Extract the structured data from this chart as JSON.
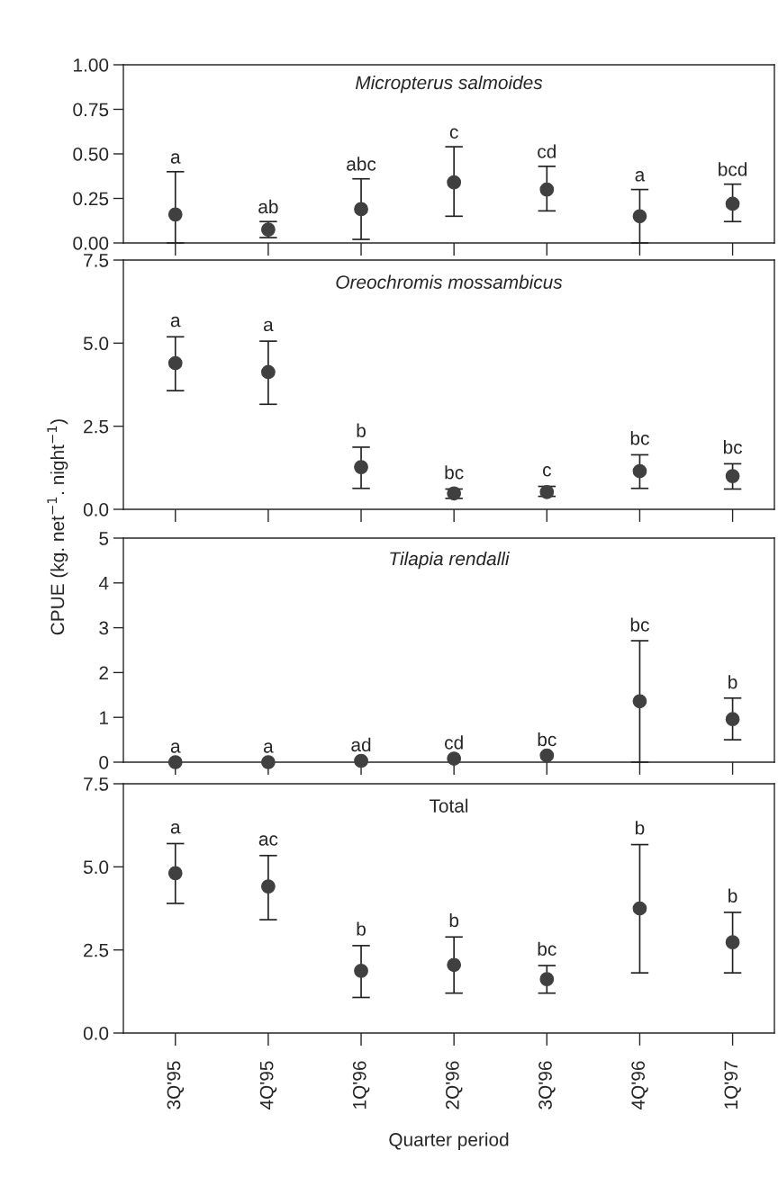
{
  "chart_data": [
    {
      "type": "scatter",
      "title": "Micropterus salmoides",
      "categories": [
        "3Q'95",
        "4Q'95",
        "1Q'96",
        "2Q'96",
        "3Q'96",
        "4Q'96",
        "1Q'97"
      ],
      "series": [
        {
          "color": "#404040",
          "values": [
            0.16,
            0.075,
            0.19,
            0.34,
            0.3,
            0.15,
            0.22
          ],
          "errors": [
            [
              0,
              0.4
            ],
            [
              0.03,
              0.12
            ],
            [
              0.02,
              0.36
            ],
            [
              0.15,
              0.54
            ],
            [
              0.18,
              0.43
            ],
            [
              0,
              0.3
            ],
            [
              0.12,
              0.33
            ]
          ]
        }
      ],
      "ylim": [
        0,
        1.0
      ],
      "yticks": [
        {
          "value": 0,
          "label": "0.00"
        },
        {
          "value": 0.25,
          "label": "0.25"
        },
        {
          "value": 0.5,
          "label": "0.50"
        },
        {
          "value": 0.75,
          "label": "0.75"
        },
        {
          "value": 1.0,
          "label": "1.00"
        }
      ],
      "marker": "circle",
      "grid": false,
      "legend": false,
      "tick_labels": "y",
      "annotations": [
        {
          "text": "a",
          "x": "3Q'95",
          "y": 0.4
        },
        {
          "text": "ab",
          "x": "4Q'95",
          "y": 0.12
        },
        {
          "text": "abc",
          "x": "1Q'96",
          "y": 0.36
        },
        {
          "text": "c",
          "x": "2Q'96",
          "y": 0.54
        },
        {
          "text": "cd",
          "x": "3Q'96",
          "y": 0.43
        },
        {
          "text": "a",
          "x": "4Q'96",
          "y": 0.3
        },
        {
          "text": "bcd",
          "x": "1Q'97",
          "y": 0.33
        }
      ]
    },
    {
      "type": "scatter",
      "title": "Oreochromis mossambicus",
      "categories": [
        "3Q'95",
        "4Q'95",
        "1Q'96",
        "2Q'96",
        "3Q'96",
        "4Q'96",
        "1Q'97"
      ],
      "series": [
        {
          "color": "#404040",
          "values": [
            4.4,
            4.13,
            1.27,
            0.48,
            0.52,
            1.15,
            1.0
          ],
          "errors": [
            [
              3.57,
              5.19
            ],
            [
              3.16,
              5.06
            ],
            [
              0.63,
              1.87
            ],
            [
              0.33,
              0.61
            ],
            [
              0.39,
              0.69
            ],
            [
              0.63,
              1.64
            ],
            [
              0.61,
              1.37
            ]
          ]
        }
      ],
      "ylim": [
        0,
        7.5
      ],
      "yticks": [
        {
          "value": 0,
          "label": "0.0"
        },
        {
          "value": 2.5,
          "label": "2.5"
        },
        {
          "value": 5,
          "label": "5.0"
        },
        {
          "value": 7.5,
          "label": "7.5"
        }
      ],
      "marker": "circle",
      "grid": false,
      "legend": false,
      "tick_labels": "y",
      "annotations": [
        {
          "text": "a",
          "x": "3Q'95",
          "y": 5.19
        },
        {
          "text": "a",
          "x": "4Q'95",
          "y": 5.06
        },
        {
          "text": "b",
          "x": "1Q'96",
          "y": 1.87
        },
        {
          "text": "bc",
          "x": "2Q'96",
          "y": 0.61
        },
        {
          "text": "c",
          "x": "3Q'96",
          "y": 0.69
        },
        {
          "text": "bc",
          "x": "4Q'96",
          "y": 1.64
        },
        {
          "text": "bc",
          "x": "1Q'97",
          "y": 1.37
        }
      ]
    },
    {
      "type": "scatter",
      "title": "Tilapia rendalli",
      "ylabel": "CPUE (kg. net$^{−1}$. night$^{−1}$)",
      "categories": [
        "3Q'95",
        "4Q'95",
        "1Q'96",
        "2Q'96",
        "3Q'96",
        "4Q'96",
        "1Q'97"
      ],
      "series": [
        {
          "color": "#404040",
          "values": [
            0,
            0,
            0.03,
            0.08,
            0.15,
            1.36,
            0.96
          ],
          "errors": [
            null,
            null,
            null,
            null,
            null,
            [
              0,
              2.71
            ],
            [
              0.5,
              1.43
            ]
          ]
        }
      ],
      "ylim": [
        0,
        5
      ],
      "yticks": [
        0,
        1,
        2,
        3,
        4,
        5
      ],
      "marker": "circle",
      "grid": false,
      "legend": false,
      "tick_labels": "y",
      "annotations": [
        {
          "text": "a",
          "x": "3Q'95",
          "y": 0
        },
        {
          "text": "a",
          "x": "4Q'95",
          "y": 0
        },
        {
          "text": "ad",
          "x": "1Q'96",
          "y": 0.03
        },
        {
          "text": "cd",
          "x": "2Q'96",
          "y": 0.08
        },
        {
          "text": "bc",
          "x": "3Q'96",
          "y": 0.15
        },
        {
          "text": "bc",
          "x": "4Q'96",
          "y": 2.71
        },
        {
          "text": "b",
          "x": "1Q'97",
          "y": 1.43
        }
      ]
    },
    {
      "type": "scatter",
      "title": "Total",
      "xlabel": "Quarter period",
      "categories": [
        "3Q'95",
        "4Q'95",
        "1Q'96",
        "2Q'96",
        "3Q'96",
        "4Q'96",
        "1Q'97"
      ],
      "series": [
        {
          "color": "#404040",
          "values": [
            4.81,
            4.41,
            1.87,
            2.05,
            1.62,
            3.75,
            2.73
          ],
          "errors": [
            [
              3.9,
              5.7
            ],
            [
              3.41,
              5.34
            ],
            [
              1.07,
              2.63
            ],
            [
              1.2,
              2.89
            ],
            [
              1.2,
              2.03
            ],
            [
              1.81,
              5.67
            ],
            [
              1.81,
              3.63
            ]
          ]
        }
      ],
      "ylim": [
        0,
        7.5
      ],
      "yticks": [
        {
          "value": 0,
          "label": "0.0"
        },
        {
          "value": 2.5,
          "label": "2.5"
        },
        {
          "value": 5,
          "label": "5.0"
        },
        {
          "value": 7.5,
          "label": "7.5"
        }
      ],
      "marker": "circle",
      "grid": false,
      "legend": false,
      "annotations": [
        {
          "text": "a",
          "x": "3Q'95",
          "y": 5.7
        },
        {
          "text": "ac",
          "x": "4Q'95",
          "y": 5.34
        },
        {
          "text": "b",
          "x": "1Q'96",
          "y": 2.63
        },
        {
          "text": "b",
          "x": "2Q'96",
          "y": 2.89
        },
        {
          "text": "bc",
          "x": "3Q'96",
          "y": 2.03
        },
        {
          "text": "b",
          "x": "4Q'96",
          "y": 5.67
        },
        {
          "text": "b",
          "x": "1Q'97",
          "y": 3.63
        }
      ]
    }
  ]
}
